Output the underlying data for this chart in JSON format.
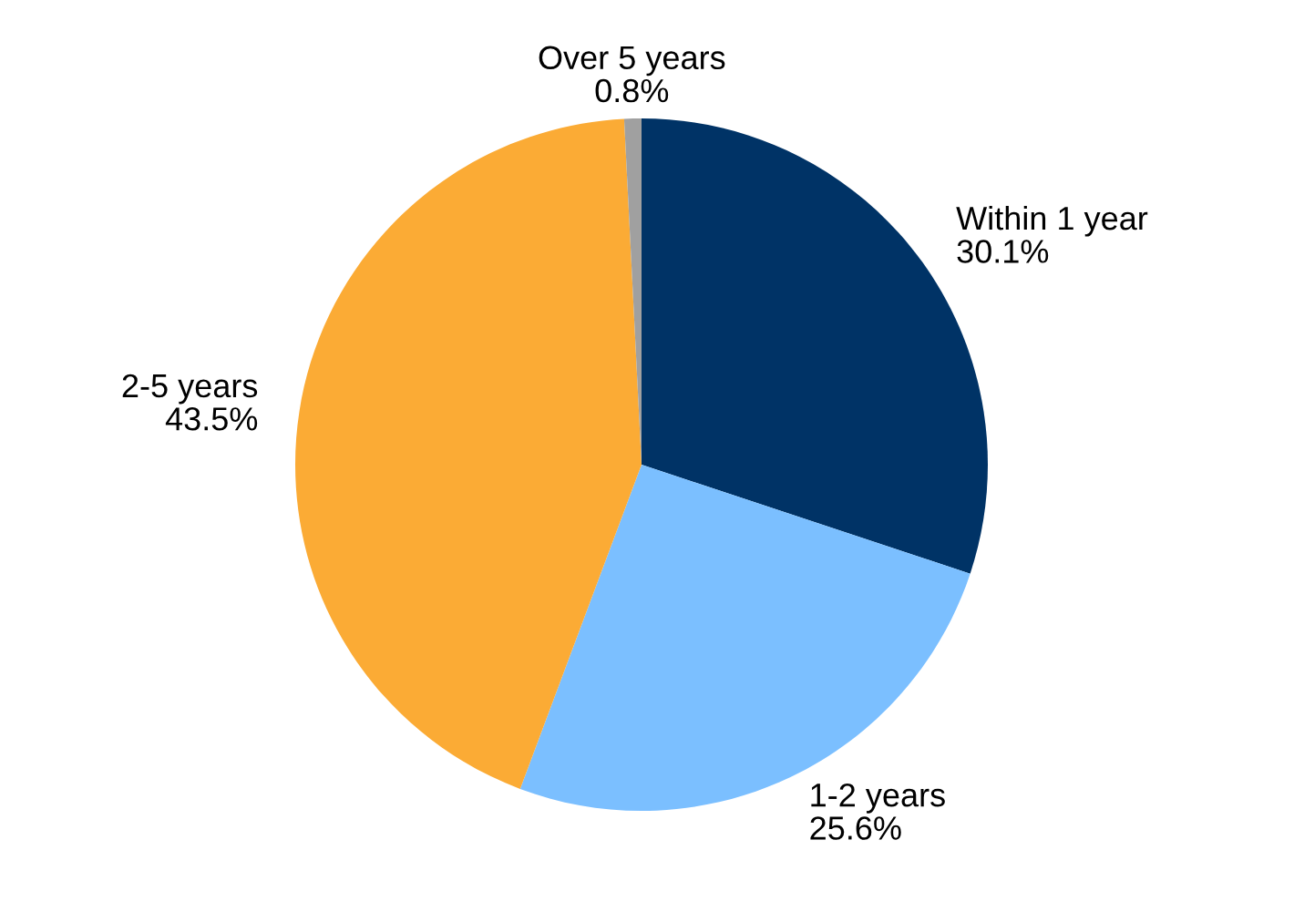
{
  "chart_data": {
    "type": "pie",
    "categories": [
      "Within 1 year",
      "1-2 years",
      "2-5 years",
      "Over 5 years"
    ],
    "values": [
      30.1,
      25.6,
      43.5,
      0.8
    ],
    "value_labels": [
      "30.1%",
      "25.6%",
      "43.5%",
      "0.8%"
    ],
    "colors": [
      "#003366",
      "#7bbfff",
      "#fbab35",
      "#a0a0a0"
    ]
  }
}
